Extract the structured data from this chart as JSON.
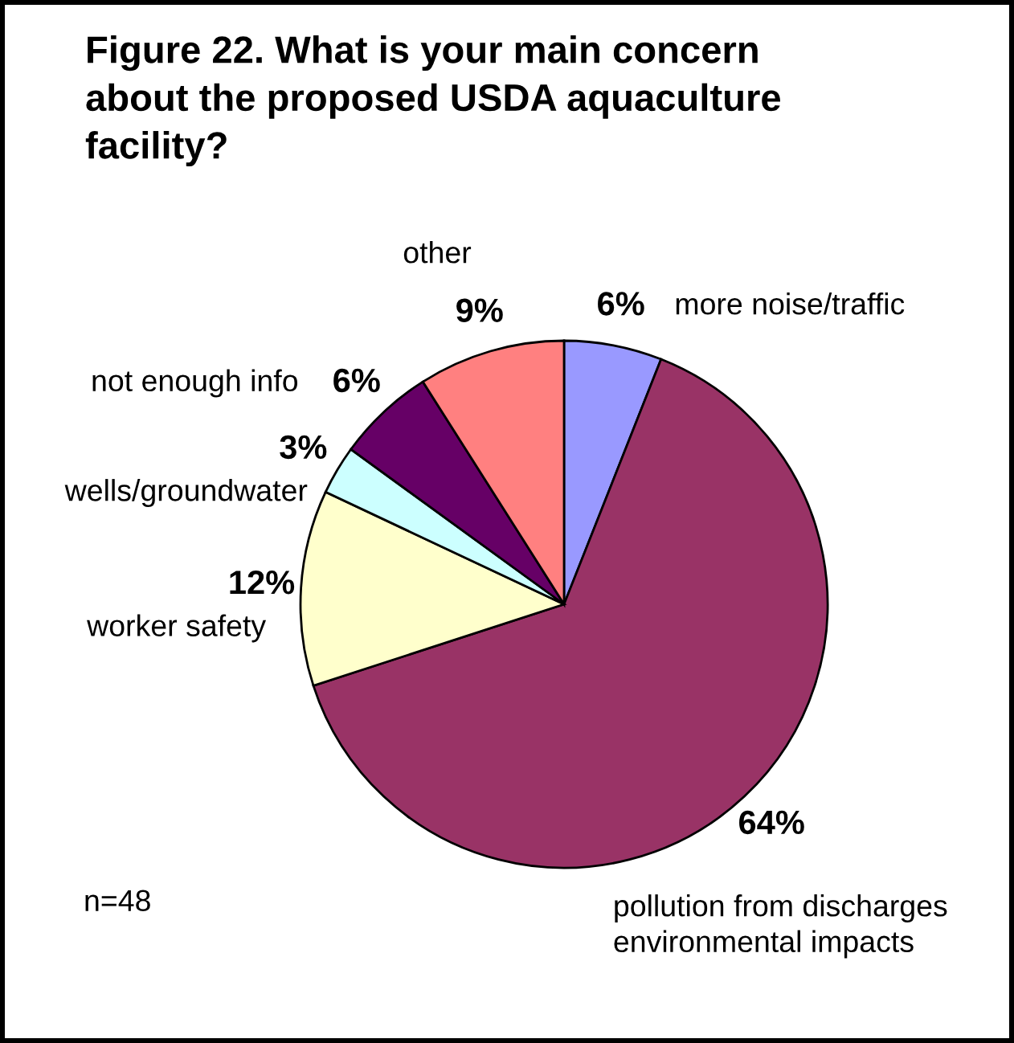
{
  "chart_data": {
    "type": "pie",
    "title": "Figure 22. What is your main concern\nabout the proposed USDA aquaculture\nfacility?",
    "categories": [
      "more noise/traffic",
      "pollution from discharges\nenvironmental impacts",
      "worker safety",
      "wells/groundwater",
      "not enough info",
      "other"
    ],
    "values": [
      6,
      64,
      12,
      3,
      6,
      9
    ],
    "colors": [
      "#9999ff",
      "#993366",
      "#ffffcc",
      "#ccffff",
      "#660066",
      "#ff8080"
    ],
    "value_labels": [
      "6%",
      "64%",
      "12%",
      "3%",
      "6%",
      "9%"
    ],
    "annotations": [
      "n=48"
    ]
  }
}
